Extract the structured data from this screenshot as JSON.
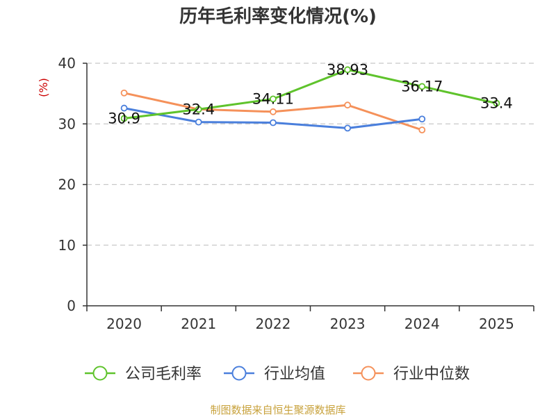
{
  "chart_data": {
    "type": "line",
    "title": "历年毛利率变化情况(%)",
    "ylabel": "(%)",
    "categories": [
      "2020",
      "2021",
      "2022",
      "2023",
      "2024",
      "2025"
    ],
    "ylim": [
      0,
      40
    ],
    "yticks": [
      "0",
      "10",
      "20",
      "30",
      "40"
    ],
    "grid": true,
    "legend_position": "bottom",
    "series": [
      {
        "name": "公司毛利率",
        "color": "#5fc32c",
        "values": [
          30.9,
          32.4,
          34.11,
          38.93,
          36.17,
          33.4
        ],
        "labels": [
          "30.9",
          "32.4",
          "34.11",
          "38.93",
          "36.17",
          "33.4"
        ]
      },
      {
        "name": "行业均值",
        "color": "#4a7fdc",
        "values": [
          32.6,
          30.3,
          30.2,
          29.3,
          30.8,
          null
        ]
      },
      {
        "name": "行业中位数",
        "color": "#f5915a",
        "values": [
          35.1,
          32.4,
          32.0,
          33.1,
          29.0,
          null
        ]
      }
    ]
  },
  "source": "制图数据来自恒生聚源数据库"
}
